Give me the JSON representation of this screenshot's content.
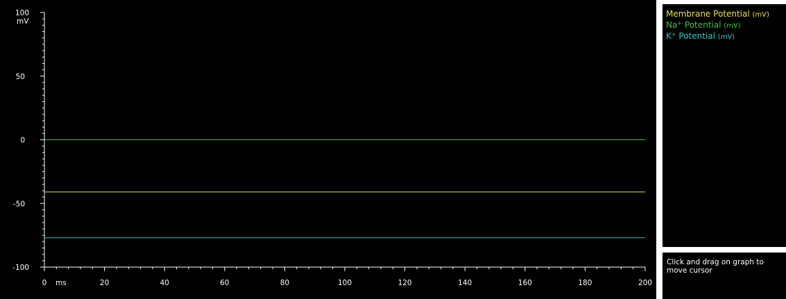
{
  "chart_data": {
    "type": "line",
    "xlabel": "ms",
    "ylabel": "mV",
    "xlim": [
      0,
      200
    ],
    "ylim": [
      -100,
      100
    ],
    "x_ticks": [
      0,
      20,
      40,
      60,
      80,
      100,
      120,
      140,
      160,
      180,
      200
    ],
    "y_ticks": [
      100,
      50,
      0,
      -50,
      -100
    ],
    "x_minor_step": 4,
    "y_minor_step": 5,
    "grid": false,
    "background": "#000000",
    "series": [
      {
        "name": "Membrane Potential",
        "unit": "(mV)",
        "color": "#e2e25a",
        "x": [
          0,
          200
        ],
        "y": [
          -41,
          -41
        ]
      },
      {
        "name": "Na+ Potential",
        "unit": "(mV)",
        "color": "#3ec23e",
        "x": [
          0,
          200
        ],
        "y": [
          0,
          0
        ]
      },
      {
        "name": "K+ Potential",
        "unit": "(mV)",
        "color": "#3cc4c4",
        "x": [
          0,
          200
        ],
        "y": [
          -77,
          -77
        ]
      }
    ]
  },
  "legend": {
    "membrane": {
      "label": "Membrane Potential",
      "unit": "(mV)",
      "color": "#e2e25a"
    },
    "na": {
      "label": "Na",
      "sup": "+",
      "rest": " Potential",
      "unit": "(mV)",
      "color": "#3ec23e"
    },
    "k": {
      "label": "K",
      "sup": "+",
      "rest": " Potential",
      "unit": "(mV)",
      "color": "#3cc4c4"
    }
  },
  "status": {
    "text": "Click and drag on graph to move cursor"
  }
}
